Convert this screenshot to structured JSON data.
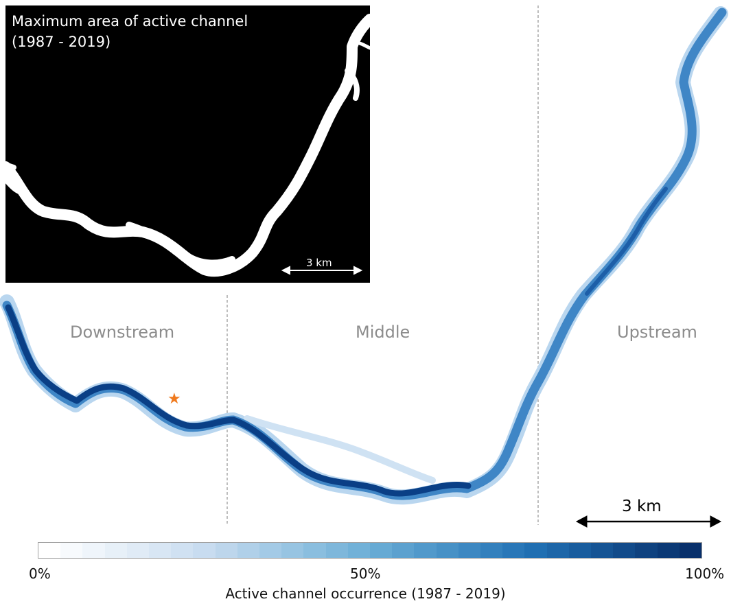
{
  "inset": {
    "title": "Maximum area of active channel\n(1987 - 2019)",
    "scale_label": "3 km"
  },
  "main_map": {
    "section_labels": [
      "Downstream",
      "Middle",
      "Upstream"
    ],
    "scale_label": "3 km",
    "site_marker": "star-icon",
    "colors": {
      "channel_dark": "#083d84",
      "channel_mid": "#2f78bd",
      "channel_light": "#9fc7e8",
      "marker": "#f07a1e",
      "divider": "#9a9a9a"
    }
  },
  "colorbar": {
    "title": "Active channel occurrence (1987 - 2019)",
    "tick_labels": [
      "0%",
      "50%",
      "100%"
    ],
    "start_color": "#ffffff",
    "end_color": "#08306b",
    "steps": 30
  }
}
